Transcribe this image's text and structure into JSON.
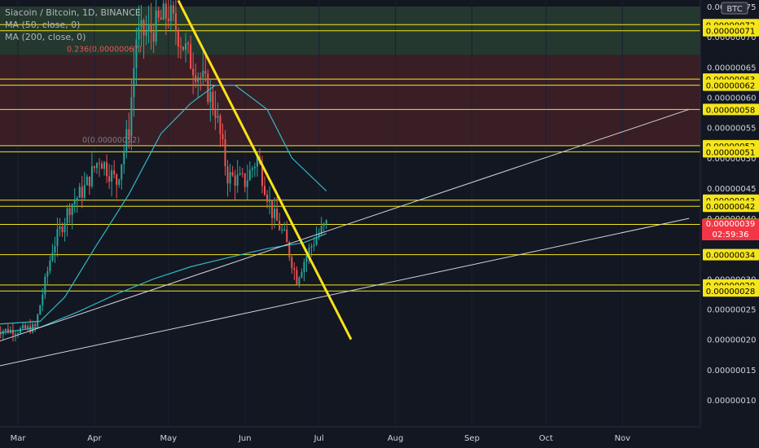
{
  "header": {
    "title": "Siacoin / Bitcoin, 1D, BINANCE",
    "ma50": "MA (50, close, 0)",
    "ma200": "MA (200, close, 0)",
    "currency": "BTC"
  },
  "colors": {
    "background": "#131722",
    "up": "#26a69a",
    "down": "#ef5350",
    "ma": "#2fb8c4",
    "level": "#f5e51b",
    "trend": "#f9e21a",
    "support": "#d1d4dc",
    "zone_green": "#24382f",
    "zone_red": "#3a1e25"
  },
  "chart_data": {
    "type": "candlestick",
    "x_axis_labels": [
      "Mar",
      "Apr",
      "May",
      "Jun",
      "Jul",
      "Aug",
      "Sep",
      "Oct",
      "Nov"
    ],
    "y_axis_labels": [
      "0.00000075",
      "0.00000070",
      "0.00000065",
      "0.00000060",
      "0.00000055",
      "0.00000050",
      "0.00000045",
      "0.00000040",
      "0.00000030",
      "0.00000025",
      "0.00000020",
      "0.00000015",
      "0.00000010"
    ],
    "ylim": [
      6e-08,
      7.5e-07
    ],
    "horizontal_levels": [
      "0.00000072",
      "0.00000071",
      "0.00000063",
      "0.00000062",
      "0.00000058",
      "0.00000052",
      "0.00000051",
      "0.00000043",
      "0.00000042",
      "0.00000039",
      "0.00000034",
      "0.00000029",
      "0.00000028"
    ],
    "current_price": {
      "value": "0.00000039",
      "countdown": "02:59:36",
      "level": 3.9e-07
    },
    "fib_labels": {
      "f0236": "0.236(0.00000067)",
      "f0": "0(0.00000052)"
    },
    "zones": [
      {
        "from": 6.7e-07,
        "to": 7.5e-07,
        "tone": "green"
      },
      {
        "from": 5.2e-07,
        "to": 6.7e-07,
        "tone": "red"
      }
    ],
    "price_series": [
      {
        "date": "2021-02-20",
        "close": 2.15e-07
      },
      {
        "date": "2021-03-01",
        "close": 2.15e-07
      },
      {
        "date": "2021-03-08",
        "close": 2.2e-07
      },
      {
        "date": "2021-03-15",
        "close": 3.5e-07
      },
      {
        "date": "2021-03-22",
        "close": 4.2e-07
      },
      {
        "date": "2021-03-28",
        "close": 4.5e-07
      },
      {
        "date": "2021-04-03",
        "close": 5e-07
      },
      {
        "date": "2021-04-10",
        "close": 4.6e-07
      },
      {
        "date": "2021-04-15",
        "close": 5.5e-07
      },
      {
        "date": "2021-04-18",
        "close": 7e-07
      },
      {
        "date": "2021-04-24",
        "close": 7.1e-07
      },
      {
        "date": "2021-05-01",
        "close": 7.4e-07
      },
      {
        "date": "2021-05-10",
        "close": 6.6e-07
      },
      {
        "date": "2021-05-16",
        "close": 6.2e-07
      },
      {
        "date": "2021-05-20",
        "close": 5.8e-07
      },
      {
        "date": "2021-05-25",
        "close": 4.7e-07
      },
      {
        "date": "2021-06-01",
        "close": 4.6e-07
      },
      {
        "date": "2021-06-06",
        "close": 5e-07
      },
      {
        "date": "2021-06-12",
        "close": 4.1e-07
      },
      {
        "date": "2021-06-17",
        "close": 3.7e-07
      },
      {
        "date": "2021-06-22",
        "close": 3e-07
      },
      {
        "date": "2021-06-26",
        "close": 3.4e-07
      },
      {
        "date": "2021-06-30",
        "close": 3.7e-07
      },
      {
        "date": "2021-07-04",
        "close": 3.9e-07
      }
    ],
    "ma50_series": [
      {
        "date": "2021-02-20",
        "value": 2.25e-07
      },
      {
        "date": "2021-03-10",
        "value": 2.3e-07
      },
      {
        "date": "2021-03-20",
        "value": 2.7e-07
      },
      {
        "date": "2021-04-01",
        "value": 3.5e-07
      },
      {
        "date": "2021-04-15",
        "value": 4.4e-07
      },
      {
        "date": "2021-04-28",
        "value": 5.4e-07
      },
      {
        "date": "2021-05-10",
        "value": 5.9e-07
      },
      {
        "date": "2021-05-20",
        "value": 6.2e-07
      },
      {
        "date": "2021-05-28",
        "value": 6.2e-07
      },
      {
        "date": "2021-06-10",
        "value": 5.8e-07
      },
      {
        "date": "2021-06-20",
        "value": 5e-07
      },
      {
        "date": "2021-07-04",
        "value": 4.45e-07
      }
    ],
    "ma200_series": [
      {
        "date": "2021-02-20",
        "value": 2.1e-07
      },
      {
        "date": "2021-03-10",
        "value": 2.2e-07
      },
      {
        "date": "2021-03-25",
        "value": 2.45e-07
      },
      {
        "date": "2021-04-10",
        "value": 2.75e-07
      },
      {
        "date": "2021-04-25",
        "value": 3e-07
      },
      {
        "date": "2021-05-10",
        "value": 3.2e-07
      },
      {
        "date": "2021-05-25",
        "value": 3.35e-07
      },
      {
        "date": "2021-06-10",
        "value": 3.5e-07
      },
      {
        "date": "2021-06-25",
        "value": 3.6e-07
      },
      {
        "date": "2021-07-04",
        "value": 3.75e-07
      }
    ],
    "trendlines": [
      {
        "kind": "trend",
        "from": {
          "date": "2021-05-05",
          "value": 7.6e-07
        },
        "to": {
          "date": "2021-07-14",
          "value": 2e-07
        }
      },
      {
        "kind": "support",
        "from": {
          "date": "2021-02-20",
          "value": 1.95e-07
        },
        "to": {
          "date": "2021-11-28",
          "value": 5.8e-07
        }
      },
      {
        "kind": "support",
        "from": {
          "date": "2021-02-20",
          "value": 1.55e-07
        },
        "to": {
          "date": "2021-11-28",
          "value": 4e-07
        }
      }
    ]
  }
}
